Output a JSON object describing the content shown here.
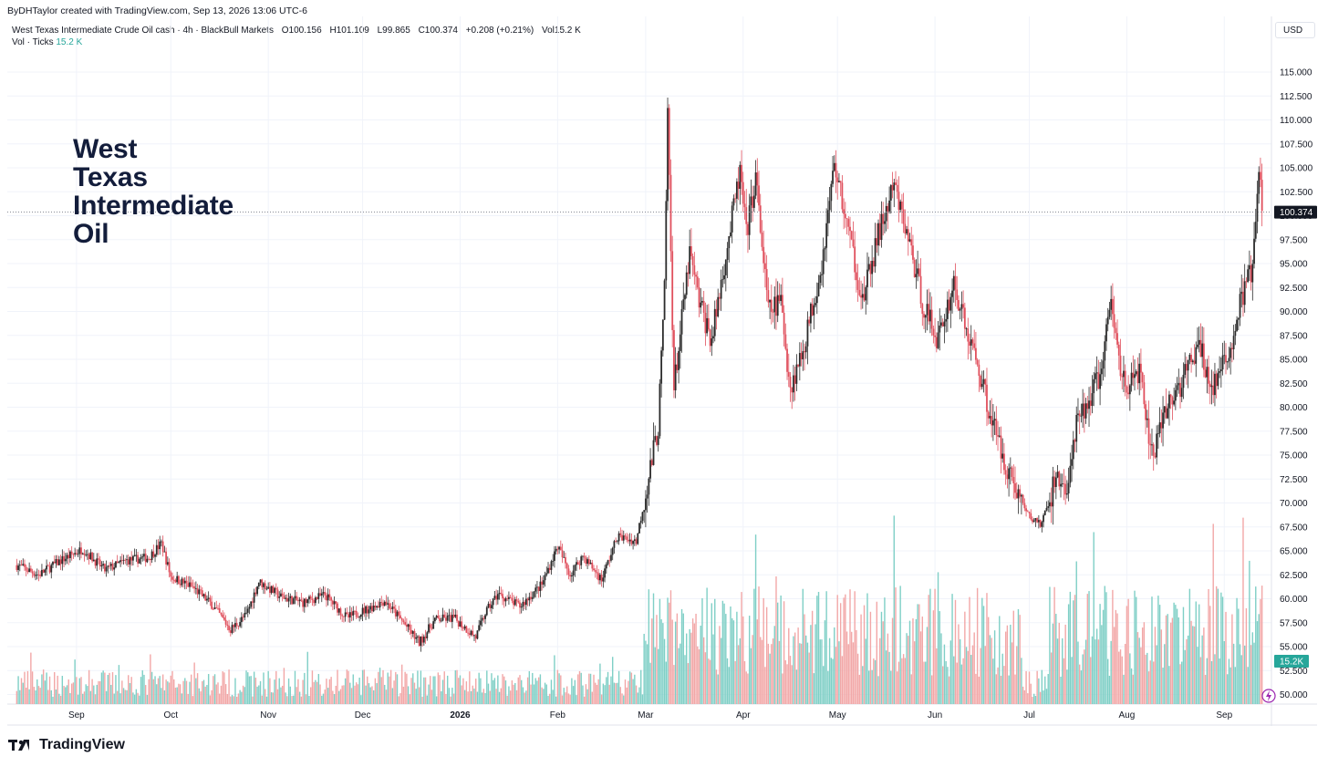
{
  "header": {
    "credit": "ByDHTaylor created with TradingView.com, Sep 13, 2026 13:06 UTC-6",
    "symbol": "West Texas Intermediate Crude Oil cash · 4h · BlackBull Markets",
    "open": "O100.156",
    "high": "H101.109",
    "low": "L99.865",
    "close": "C100.374",
    "change": "+0.208 (+0.21%)",
    "volume": "Vol15.2 K",
    "vol_label": "Vol · Ticks",
    "vol_value": "15.2 K",
    "currency": "USD"
  },
  "annotation": {
    "text": "West\nTexas\nIntermediate\nOil"
  },
  "footer": {
    "brand": "TradingView",
    "logo_icon": "tradingview-logo-icon"
  },
  "chart_data": {
    "type": "candlestick",
    "interval": "4h",
    "ylim": [
      49,
      117
    ],
    "y_ticks": [
      "115.000",
      "112.500",
      "110.000",
      "107.500",
      "105.000",
      "102.500",
      "100.000",
      "97.500",
      "95.000",
      "92.500",
      "90.000",
      "87.500",
      "85.000",
      "82.500",
      "80.000",
      "77.500",
      "75.000",
      "72.500",
      "70.000",
      "67.500",
      "65.000",
      "62.500",
      "60.000",
      "57.500",
      "55.000",
      "52.500",
      "50.000"
    ],
    "x_ticks": [
      "Sep",
      "Oct",
      "Nov",
      "Dec",
      "2026",
      "Feb",
      "Mar",
      "Apr",
      "May",
      "Jun",
      "Jul",
      "Aug",
      "Sep"
    ],
    "bold_x_tick": "2026",
    "last_price": "100.374",
    "last_price_value": 100.374,
    "last_volume": "15.2K",
    "price_path": [
      {
        "d": "2025-08-13",
        "p": 63.5
      },
      {
        "d": "2025-08-20",
        "p": 62.5
      },
      {
        "d": "2025-08-27",
        "p": 64.0
      },
      {
        "d": "2025-09-03",
        "p": 65.2
      },
      {
        "d": "2025-09-10",
        "p": 63.0
      },
      {
        "d": "2025-09-17",
        "p": 64.0
      },
      {
        "d": "2025-09-24",
        "p": 64.3
      },
      {
        "d": "2025-09-28",
        "p": 65.8
      },
      {
        "d": "2025-10-01",
        "p": 62.3
      },
      {
        "d": "2025-10-08",
        "p": 61.2
      },
      {
        "d": "2025-10-14",
        "p": 59.4
      },
      {
        "d": "2025-10-20",
        "p": 56.8
      },
      {
        "d": "2025-10-25",
        "p": 58.3
      },
      {
        "d": "2025-10-29",
        "p": 61.8
      },
      {
        "d": "2025-11-05",
        "p": 60.2
      },
      {
        "d": "2025-11-12",
        "p": 59.6
      },
      {
        "d": "2025-11-19",
        "p": 60.4
      },
      {
        "d": "2025-11-26",
        "p": 58.0
      },
      {
        "d": "2025-12-03",
        "p": 59.0
      },
      {
        "d": "2025-12-08",
        "p": 59.8
      },
      {
        "d": "2025-12-14",
        "p": 57.5
      },
      {
        "d": "2025-12-19",
        "p": 55.4
      },
      {
        "d": "2025-12-24",
        "p": 57.8
      },
      {
        "d": "2025-12-30",
        "p": 58.0
      },
      {
        "d": "2026-01-06",
        "p": 56.0
      },
      {
        "d": "2026-01-09",
        "p": 58.5
      },
      {
        "d": "2026-01-13",
        "p": 60.5
      },
      {
        "d": "2026-01-20",
        "p": 59.2
      },
      {
        "d": "2026-01-27",
        "p": 61.5
      },
      {
        "d": "2026-02-01",
        "p": 65.5
      },
      {
        "d": "2026-02-05",
        "p": 62.5
      },
      {
        "d": "2026-02-09",
        "p": 64.5
      },
      {
        "d": "2026-02-15",
        "p": 62.0
      },
      {
        "d": "2026-02-20",
        "p": 66.5
      },
      {
        "d": "2026-02-26",
        "p": 66.0
      },
      {
        "d": "2026-03-01",
        "p": 71.0
      },
      {
        "d": "2026-03-05",
        "p": 78.0
      },
      {
        "d": "2026-03-07",
        "p": 92.0
      },
      {
        "d": "2026-03-08",
        "p": 111.0
      },
      {
        "d": "2026-03-10",
        "p": 82.0
      },
      {
        "d": "2026-03-15",
        "p": 96.0
      },
      {
        "d": "2026-03-18",
        "p": 91.0
      },
      {
        "d": "2026-03-22",
        "p": 87.0
      },
      {
        "d": "2026-03-26",
        "p": 95.0
      },
      {
        "d": "2026-03-31",
        "p": 104.5
      },
      {
        "d": "2026-04-02",
        "p": 98.0
      },
      {
        "d": "2026-04-05",
        "p": 104.0
      },
      {
        "d": "2026-04-09",
        "p": 90.0
      },
      {
        "d": "2026-04-13",
        "p": 91.0
      },
      {
        "d": "2026-04-16",
        "p": 82.0
      },
      {
        "d": "2026-04-20",
        "p": 86.0
      },
      {
        "d": "2026-04-26",
        "p": 95.0
      },
      {
        "d": "2026-04-30",
        "p": 105.5
      },
      {
        "d": "2026-05-06",
        "p": 96.0
      },
      {
        "d": "2026-05-09",
        "p": 91.0
      },
      {
        "d": "2026-05-14",
        "p": 98.0
      },
      {
        "d": "2026-05-19",
        "p": 103.0
      },
      {
        "d": "2026-05-24",
        "p": 97.0
      },
      {
        "d": "2026-05-28",
        "p": 91.0
      },
      {
        "d": "2026-06-02",
        "p": 87.0
      },
      {
        "d": "2026-06-07",
        "p": 93.0
      },
      {
        "d": "2026-06-11",
        "p": 88.0
      },
      {
        "d": "2026-06-15",
        "p": 84.0
      },
      {
        "d": "2026-06-18",
        "p": 80.0
      },
      {
        "d": "2026-06-22",
        "p": 75.5
      },
      {
        "d": "2026-06-26",
        "p": 72.0
      },
      {
        "d": "2026-07-01",
        "p": 68.5
      },
      {
        "d": "2026-07-05",
        "p": 67.8
      },
      {
        "d": "2026-07-10",
        "p": 73.0
      },
      {
        "d": "2026-07-13",
        "p": 71.0
      },
      {
        "d": "2026-07-16",
        "p": 78.0
      },
      {
        "d": "2026-07-19",
        "p": 80.0
      },
      {
        "d": "2026-07-24",
        "p": 84.0
      },
      {
        "d": "2026-07-27",
        "p": 91.0
      },
      {
        "d": "2026-07-30",
        "p": 84.0
      },
      {
        "d": "2026-08-02",
        "p": 82.0
      },
      {
        "d": "2026-08-05",
        "p": 84.0
      },
      {
        "d": "2026-08-08",
        "p": 76.5
      },
      {
        "d": "2026-08-10",
        "p": 75.5
      },
      {
        "d": "2026-08-14",
        "p": 80.0
      },
      {
        "d": "2026-08-19",
        "p": 83.0
      },
      {
        "d": "2026-08-24",
        "p": 86.5
      },
      {
        "d": "2026-08-28",
        "p": 82.0
      },
      {
        "d": "2026-09-02",
        "p": 85.0
      },
      {
        "d": "2026-09-07",
        "p": 92.0
      },
      {
        "d": "2026-09-10",
        "p": 94.5
      },
      {
        "d": "2026-09-12",
        "p": 104.5
      },
      {
        "d": "2026-09-13",
        "p": 100.374
      }
    ],
    "up_color": "#2b2b2b",
    "down_color": "#e0505d",
    "vol_up_color": "#7fcfc6",
    "vol_down_color": "#f2a7a7",
    "grid": true
  }
}
